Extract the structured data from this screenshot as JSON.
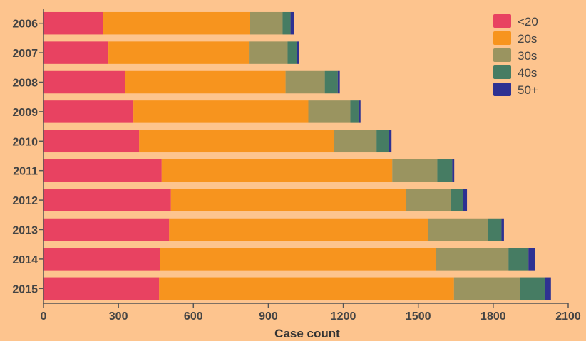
{
  "chart_data": {
    "type": "bar",
    "orientation": "horizontal",
    "stacked": true,
    "title": "",
    "xlabel": "Case count",
    "ylabel": "",
    "xlim": [
      0,
      2100
    ],
    "xticks": [
      0,
      300,
      600,
      900,
      1200,
      1500,
      1800,
      2100
    ],
    "grid": false,
    "legend_position": "top-right",
    "categories": [
      "2006",
      "2007",
      "2008",
      "2009",
      "2010",
      "2011",
      "2012",
      "2013",
      "2014",
      "2015"
    ],
    "series": [
      {
        "name": "<20",
        "color": "#e84261",
        "values": [
          237,
          260,
          326,
          360,
          383,
          473,
          510,
          503,
          466,
          463
        ]
      },
      {
        "name": "20s",
        "color": "#f7941e",
        "values": [
          588,
          562,
          643,
          700,
          780,
          923,
          940,
          1035,
          1105,
          1180
        ]
      },
      {
        "name": "30s",
        "color": "#9a9460",
        "values": [
          132,
          155,
          157,
          168,
          170,
          180,
          180,
          240,
          290,
          265
        ]
      },
      {
        "name": "40s",
        "color": "#467c63",
        "values": [
          32,
          37,
          52,
          33,
          50,
          60,
          50,
          55,
          80,
          98
        ]
      },
      {
        "name": "50+",
        "color": "#2e3192",
        "values": [
          15,
          8,
          8,
          8,
          10,
          8,
          15,
          10,
          25,
          25
        ]
      }
    ]
  }
}
